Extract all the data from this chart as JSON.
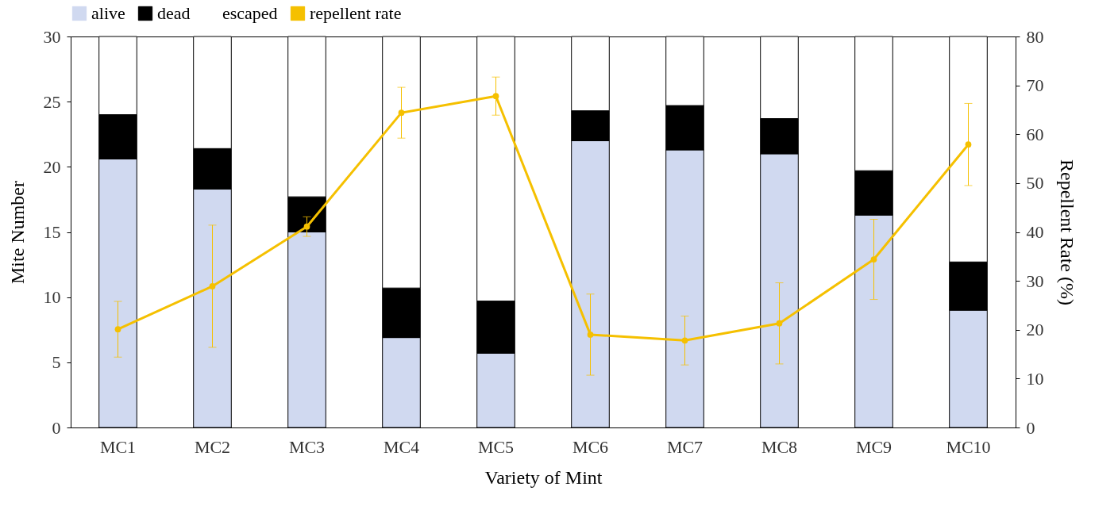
{
  "chart_data": {
    "type": "bar",
    "stacked": true,
    "xlabel": "Variety of Mint",
    "ylabel": "Mite Number",
    "y2label": "Repellent Rate (%)",
    "categories": [
      "MC1",
      "MC2",
      "MC3",
      "MC4",
      "MC5",
      "MC6",
      "MC7",
      "MC8",
      "MC9",
      "MC10"
    ],
    "series": [
      {
        "name": "alive",
        "color": "#d0d9f0",
        "values": [
          20.6,
          18.3,
          15.0,
          6.9,
          5.7,
          22.0,
          21.3,
          21.0,
          16.3,
          9.0
        ]
      },
      {
        "name": "dead",
        "color": "#000000",
        "values": [
          3.4,
          3.1,
          2.7,
          3.8,
          4.0,
          2.3,
          3.4,
          2.7,
          3.4,
          3.7
        ]
      },
      {
        "name": "escaped",
        "color": "#ffffff",
        "values": [
          6.0,
          8.6,
          12.3,
          19.3,
          20.3,
          5.7,
          5.3,
          6.3,
          10.3,
          17.3
        ]
      },
      {
        "name": "repellent rate",
        "type": "line",
        "axis": "y2",
        "color": "#f5c000",
        "values": [
          20.1,
          28.9,
          41.1,
          64.4,
          67.8,
          19.0,
          17.8,
          21.3,
          34.4,
          57.9
        ],
        "errors": [
          5.7,
          12.5,
          2.0,
          5.2,
          3.9,
          8.3,
          5.0,
          8.3,
          8.2,
          8.4
        ]
      }
    ],
    "ylim": [
      0,
      30
    ],
    "yticks": [
      0,
      5,
      10,
      15,
      20,
      25,
      30
    ],
    "y2lim": [
      0,
      80
    ],
    "y2ticks": [
      0,
      10,
      20,
      30,
      40,
      50,
      60,
      70,
      80
    ],
    "legend": "top",
    "marker": "circle",
    "grid": false
  }
}
